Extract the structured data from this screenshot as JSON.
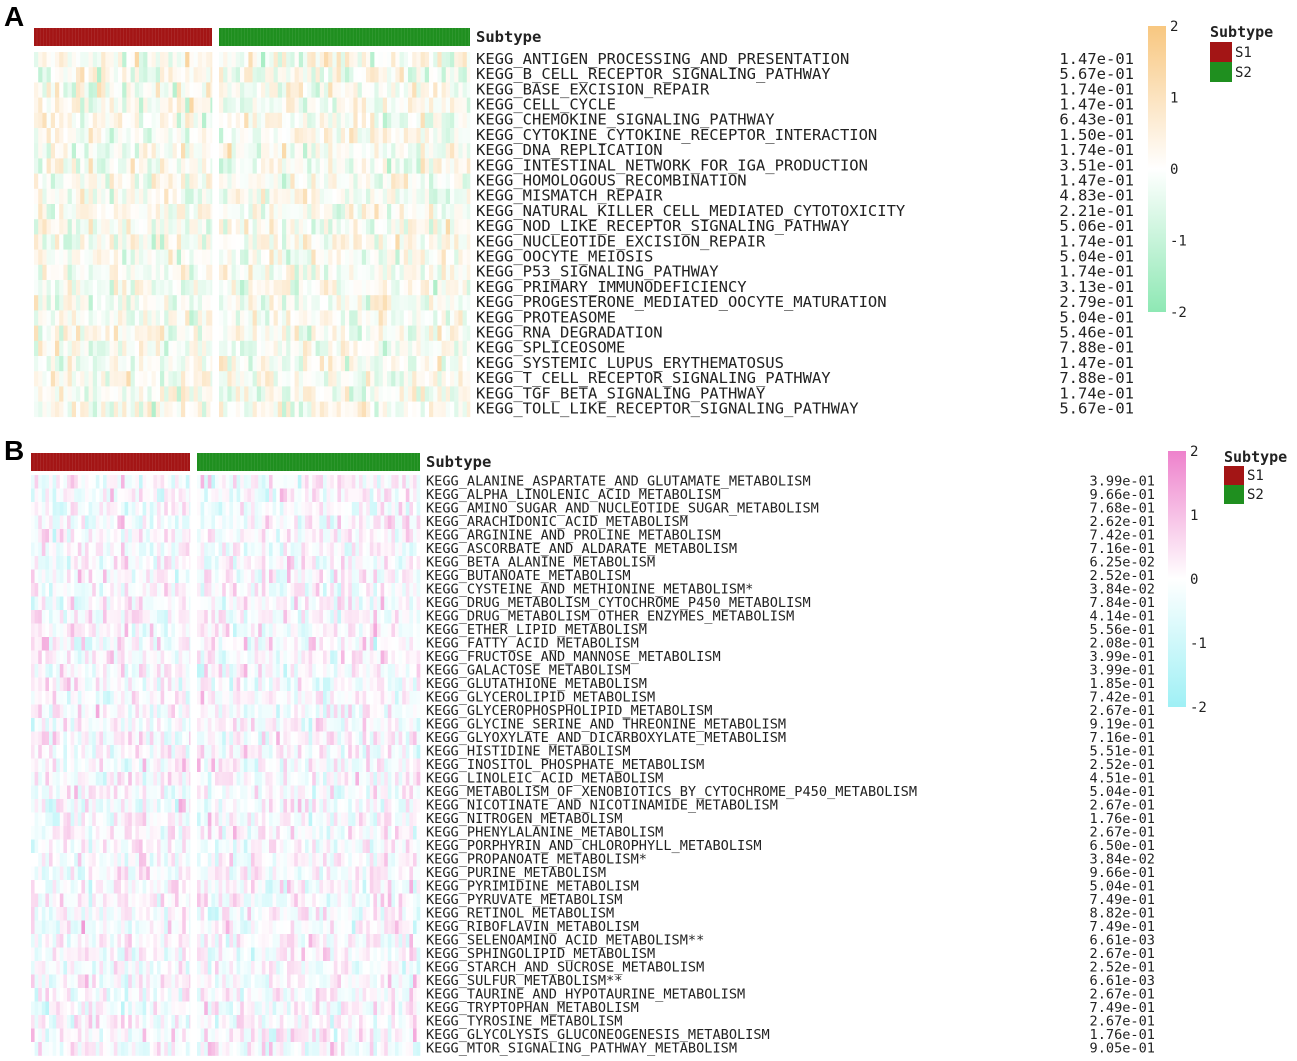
{
  "chart_data": [
    {
      "type": "heatmap",
      "panel": "A",
      "annotation_title": "Subtype",
      "groups": [
        {
          "name": "S1",
          "color": "#a31515"
        },
        {
          "name": "S2",
          "color": "#1f8f1f"
        }
      ],
      "colorscale": {
        "min": -2,
        "max": 2,
        "ticks": [
          "2",
          "1",
          "0",
          "-1",
          "-2"
        ],
        "low": "#8ee8b4",
        "mid": "#ffffff",
        "high": "#f8c780"
      },
      "rows": [
        "KEGG_ANTIGEN_PROCESSING_AND_PRESENTATION",
        "KEGG_B_CELL_RECEPTOR_SIGNALING_PATHWAY",
        "KEGG_BASE_EXCISION_REPAIR",
        "KEGG_CELL_CYCLE",
        "KEGG_CHEMOKINE_SIGNALING_PATHWAY",
        "KEGG_CYTOKINE_CYTOKINE_RECEPTOR_INTERACTION",
        "KEGG_DNA_REPLICATION",
        "KEGG_INTESTINAL_NETWORK_FOR_IGA_PRODUCTION",
        "KEGG_HOMOLOGOUS_RECOMBINATION",
        "KEGG_MISMATCH_REPAIR",
        "KEGG_NATURAL_KILLER_CELL_MEDIATED_CYTOTOXICITY",
        "KEGG_NOD_LIKE_RECEPTOR_SIGNALING_PATHWAY",
        "KEGG_NUCLEOTIDE_EXCISION_REPAIR",
        "KEGG_OOCYTE_MEIOSIS",
        "KEGG_P53_SIGNALING_PATHWAY",
        "KEGG_PRIMARY_IMMUNODEFICIENCY",
        "KEGG_PROGESTERONE_MEDIATED_OOCYTE_MATURATION",
        "KEGG_PROTEASOME",
        "KEGG_RNA_DEGRADATION",
        "KEGG_SPLICEOSOME",
        "KEGG_SYSTEMIC_LUPUS_ERYTHEMATOSUS",
        "KEGG_T_CELL_RECEPTOR_SIGNALING_PATHWAY",
        "KEGG_TGF_BETA_SIGNALING_PATHWAY",
        "KEGG_TOLL_LIKE_RECEPTOR_SIGNALING_PATHWAY"
      ],
      "pvalues": [
        "1.47e-01",
        "5.67e-01",
        "1.74e-01",
        "1.47e-01",
        "6.43e-01",
        "1.50e-01",
        "1.74e-01",
        "3.51e-01",
        "1.47e-01",
        "4.83e-01",
        "2.21e-01",
        "5.06e-01",
        "1.74e-01",
        "5.04e-01",
        "1.74e-01",
        "3.13e-01",
        "2.79e-01",
        "5.04e-01",
        "5.46e-01",
        "7.88e-01",
        "1.47e-01",
        "7.88e-01",
        "1.74e-01",
        "5.67e-01"
      ]
    },
    {
      "type": "heatmap",
      "panel": "B",
      "annotation_title": "Subtype",
      "groups": [
        {
          "name": "S1",
          "color": "#a31515"
        },
        {
          "name": "S2",
          "color": "#1f8f1f"
        }
      ],
      "colorscale": {
        "min": -2,
        "max": 2,
        "ticks": [
          "2",
          "1",
          "0",
          "-1",
          "-2"
        ],
        "low": "#9ff0f5",
        "mid": "#ffffff",
        "high": "#ee82cc"
      },
      "rows": [
        "KEGG_ALANINE_ASPARTATE_AND_GLUTAMATE_METABOLISM",
        "KEGG_ALPHA_LINOLENIC_ACID_METABOLISM",
        "KEGG_AMINO_SUGAR_AND_NUCLEOTIDE_SUGAR_METABOLISM",
        "KEGG_ARACHIDONIC_ACID_METABOLISM",
        "KEGG_ARGININE_AND_PROLINE_METABOLISM",
        "KEGG_ASCORBATE_AND_ALDARATE_METABOLISM",
        "KEGG_BETA_ALANINE_METABOLISM",
        "KEGG_BUTANOATE_METABOLISM",
        "KEGG_CYSTEINE_AND_METHIONINE_METABOLISM*",
        "KEGG_DRUG_METABOLISM_CYTOCHROME_P450_METABOLISM",
        "KEGG_DRUG_METABOLISM_OTHER_ENZYMES_METABOLISM",
        "KEGG_ETHER_LIPID_METABOLISM",
        "KEGG_FATTY_ACID_METABOLISM",
        "KEGG_FRUCTOSE_AND_MANNOSE_METABOLISM",
        "KEGG_GALACTOSE_METABOLISM",
        "KEGG_GLUTATHIONE_METABOLISM",
        "KEGG_GLYCEROLIPID_METABOLISM",
        "KEGG_GLYCEROPHOSPHOLIPID_METABOLISM",
        "KEGG_GLYCINE_SERINE_AND_THREONINE_METABOLISM",
        "KEGG_GLYOXYLATE_AND_DICARBOXYLATE_METABOLISM",
        "KEGG_HISTIDINE_METABOLISM",
        "KEGG_INOSITOL_PHOSPHATE_METABOLISM",
        "KEGG_LINOLEIC_ACID_METABOLISM",
        "KEGG_METABOLISM_OF_XENOBIOTICS_BY_CYTOCHROME_P450_METABOLISM",
        "KEGG_NICOTINATE_AND_NICOTINAMIDE_METABOLISM",
        "KEGG_NITROGEN_METABOLISM",
        "KEGG_PHENYLALANINE_METABOLISM",
        "KEGG_PORPHYRIN_AND_CHLOROPHYLL_METABOLISM",
        "KEGG_PROPANOATE_METABOLISM*",
        "KEGG_PURINE_METABOLISM",
        "KEGG_PYRIMIDINE_METABOLISM",
        "KEGG_PYRUVATE_METABOLISM",
        "KEGG_RETINOL_METABOLISM",
        "KEGG_RIBOFLAVIN_METABOLISM",
        "KEGG_SELENOAMINO_ACID_METABOLISM**",
        "KEGG_SPHINGOLIPID_METABOLISM",
        "KEGG_STARCH_AND_SUCROSE_METABOLISM",
        "KEGG_SULFUR_METABOLISM**",
        "KEGG_TAURINE_AND_HYPOTAURINE_METABOLISM",
        "KEGG_TRYPTOPHAN_METABOLISM",
        "KEGG_TYROSINE_METABOLISM",
        "KEGG_GLYCOLYSIS_GLUCONEOGENESIS_METABOLISM",
        "KEGG_MTOR_SIGNALING_PATHWAY_METABOLISM"
      ],
      "pvalues": [
        "3.99e-01",
        "9.66e-01",
        "7.68e-01",
        "2.62e-01",
        "7.42e-01",
        "7.16e-01",
        "6.25e-02",
        "2.52e-01",
        "3.84e-02",
        "7.84e-01",
        "4.14e-01",
        "5.56e-01",
        "2.08e-01",
        "3.99e-01",
        "3.99e-01",
        "1.85e-01",
        "7.42e-01",
        "2.67e-01",
        "9.19e-01",
        "7.16e-01",
        "5.51e-01",
        "2.52e-01",
        "4.51e-01",
        "5.04e-01",
        "2.67e-01",
        "1.76e-01",
        "2.67e-01",
        "6.50e-01",
        "3.84e-02",
        "9.66e-01",
        "5.04e-01",
        "7.49e-01",
        "8.82e-01",
        "7.49e-01",
        "6.61e-03",
        "2.67e-01",
        "2.52e-01",
        "6.61e-03",
        "2.67e-01",
        "7.49e-01",
        "2.67e-01",
        "1.76e-01",
        "9.05e-01"
      ]
    }
  ]
}
